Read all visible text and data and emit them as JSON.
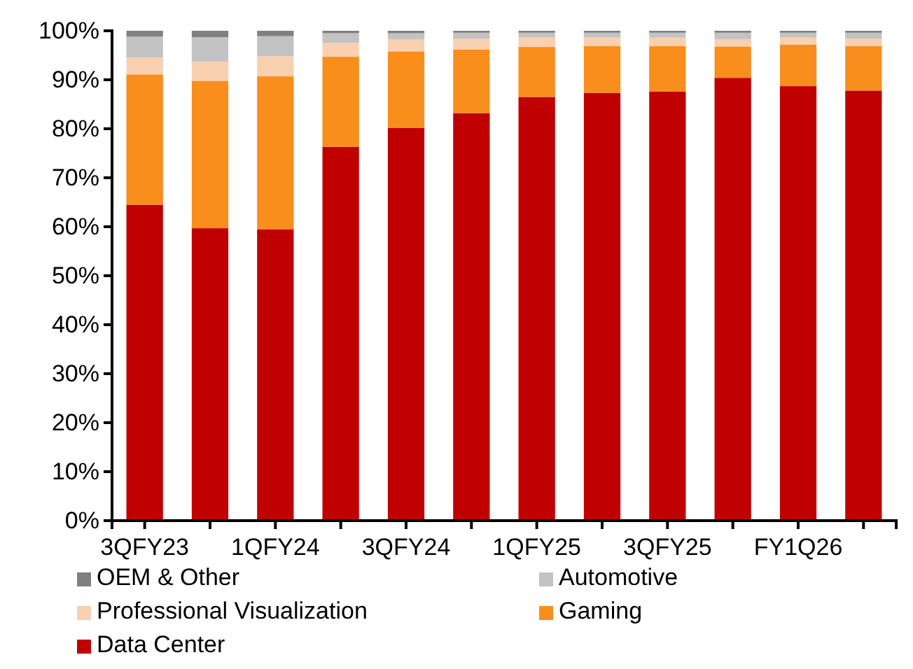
{
  "chart_data": {
    "type": "bar",
    "stacked": true,
    "legend": "bottom",
    "grid": false,
    "categories": [
      "3QFY23",
      null,
      "1QFY24",
      null,
      "3QFY24",
      null,
      "1QFY25",
      null,
      "3QFY25",
      null,
      "FY1Q26",
      null
    ],
    "ylim": [
      0,
      100
    ],
    "yticks": [
      {
        "value": 0,
        "label": "0%"
      },
      {
        "value": 10,
        "label": "10%"
      },
      {
        "value": 20,
        "label": "20%"
      },
      {
        "value": 30,
        "label": "30%"
      },
      {
        "value": 40,
        "label": "40%"
      },
      {
        "value": 50,
        "label": "50%"
      },
      {
        "value": 60,
        "label": "60%"
      },
      {
        "value": 70,
        "label": "70%"
      },
      {
        "value": 80,
        "label": "80%"
      },
      {
        "value": 90,
        "label": "90%"
      },
      {
        "value": 100,
        "label": "100%"
      }
    ],
    "series": [
      {
        "name": "Data Center",
        "color": "#c00000",
        "values": [
          64.5,
          59.7,
          59.5,
          76.3,
          80.2,
          83.2,
          86.5,
          87.3,
          87.6,
          90.4,
          88.7,
          87.8
        ]
      },
      {
        "name": "Gaming",
        "color": "#f98e1d",
        "values": [
          26.6,
          30.1,
          31.2,
          18.4,
          15.6,
          13.0,
          10.2,
          9.6,
          9.3,
          6.4,
          8.5,
          9.1
        ]
      },
      {
        "name": "Professional Visualization",
        "color": "#f9d0b0",
        "values": [
          3.4,
          3.9,
          4.1,
          2.8,
          2.4,
          2.2,
          1.9,
          1.7,
          1.7,
          1.5,
          1.4,
          1.5
        ]
      },
      {
        "name": "Automotive",
        "color": "#c3c3c3",
        "values": [
          4.3,
          5.0,
          4.1,
          2.0,
          1.3,
          1.2,
          1.0,
          1.0,
          1.0,
          1.3,
          1.0,
          1.2
        ]
      },
      {
        "name": "OEM & Other",
        "color": "#808080",
        "values": [
          1.2,
          1.3,
          1.1,
          0.5,
          0.5,
          0.4,
          0.4,
          0.4,
          0.4,
          0.4,
          0.4,
          0.4
        ]
      }
    ]
  }
}
